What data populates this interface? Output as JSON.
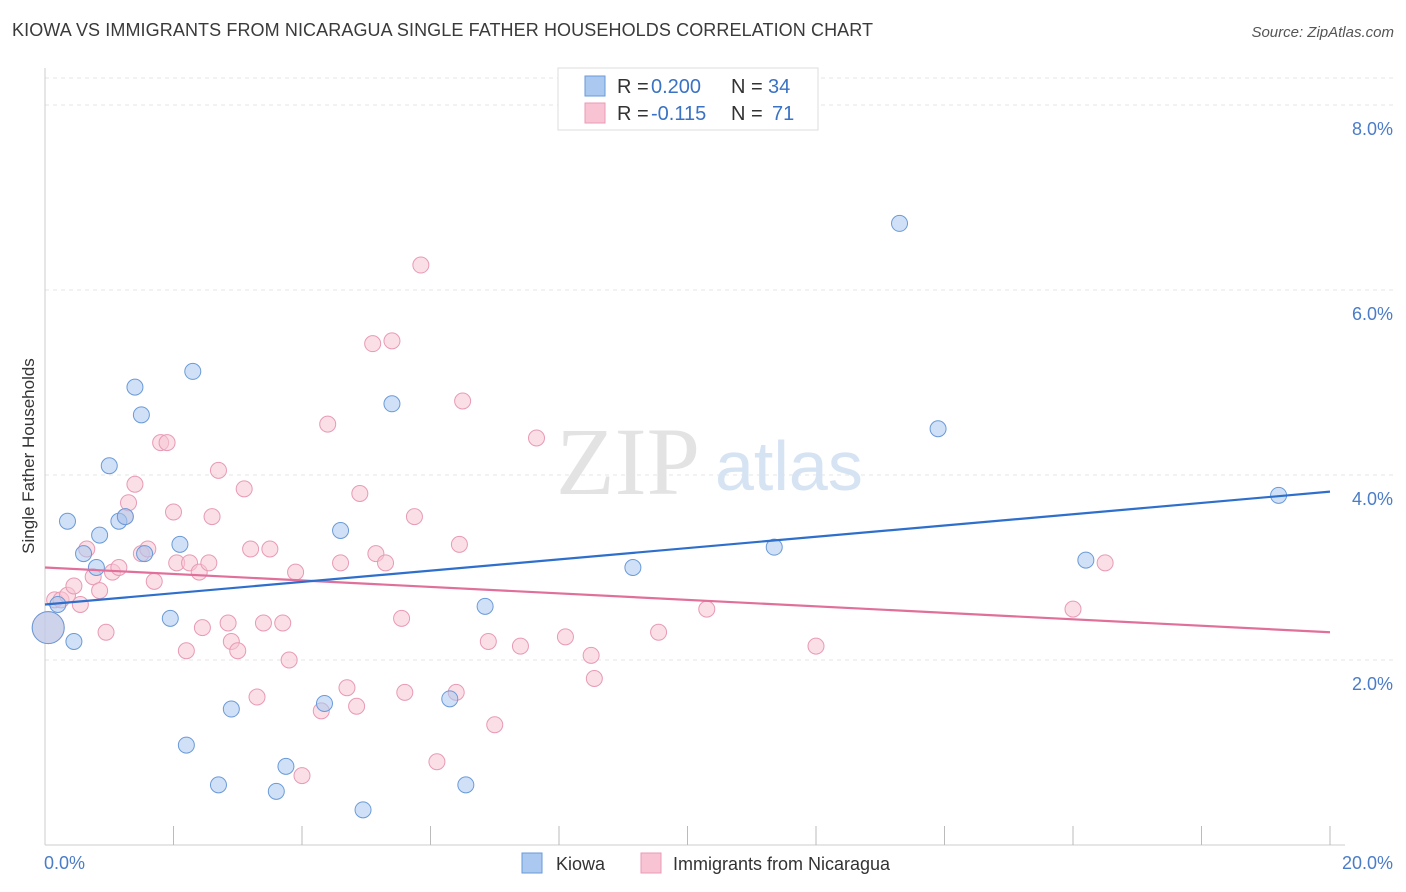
{
  "header": {
    "title": "KIOWA VS IMMIGRANTS FROM NICARAGUA SINGLE FATHER HOUSEHOLDS CORRELATION CHART",
    "source": "Source: ZipAtlas.com"
  },
  "watermark": {
    "zip": "ZIP",
    "atlas": "atlas"
  },
  "legend": {
    "series": [
      {
        "r_label": "R =",
        "r_value": "0.200",
        "n_label": "N =",
        "n_value": "34",
        "color": "#aac8f0",
        "stroke": "#6a9ad8"
      },
      {
        "r_label": "R =",
        "r_value": "-0.115",
        "n_label": "N =",
        "n_value": "71",
        "color": "#f8c4d4",
        "stroke": "#e89ab4"
      }
    ]
  },
  "chart_data": {
    "type": "scatter",
    "title": "KIOWA VS IMMIGRANTS FROM NICARAGUA SINGLE FATHER HOUSEHOLDS CORRELATION CHART",
    "xlabel": "",
    "ylabel": "Single Father Households",
    "xlim": [
      0,
      20
    ],
    "ylim": [
      0,
      8.4
    ],
    "x_tick_labels": [
      "0.0%",
      "20.0%"
    ],
    "y_ticks": [
      2,
      4,
      6,
      8
    ],
    "y_tick_labels": [
      "2.0%",
      "4.0%",
      "6.0%",
      "8.0%"
    ],
    "grid": true,
    "series": [
      {
        "name": "Kiowa",
        "color": "#aac8f0",
        "stroke": "#6a9ad8",
        "line_color": "#2f6fcc",
        "trend": [
          [
            0,
            2.6
          ],
          [
            20,
            3.82
          ]
        ],
        "points": [
          [
            0.05,
            2.35
          ],
          [
            0.2,
            2.6
          ],
          [
            0.35,
            3.5
          ],
          [
            0.45,
            2.2
          ],
          [
            0.6,
            3.15
          ],
          [
            0.8,
            3.0
          ],
          [
            0.85,
            3.35
          ],
          [
            1.0,
            4.1
          ],
          [
            1.15,
            3.5
          ],
          [
            1.25,
            3.55
          ],
          [
            1.4,
            4.95
          ],
          [
            1.5,
            4.65
          ],
          [
            1.55,
            3.15
          ],
          [
            1.95,
            2.45
          ],
          [
            2.1,
            3.25
          ],
          [
            2.2,
            1.08
          ],
          [
            2.3,
            5.12
          ],
          [
            2.7,
            0.65
          ],
          [
            2.9,
            1.47
          ],
          [
            3.6,
            0.58
          ],
          [
            3.75,
            0.85
          ],
          [
            4.35,
            1.53
          ],
          [
            4.6,
            3.4
          ],
          [
            4.95,
            0.38
          ],
          [
            5.4,
            4.77
          ],
          [
            6.3,
            1.58
          ],
          [
            6.55,
            0.65
          ],
          [
            6.85,
            2.58
          ],
          [
            9.15,
            3.0
          ],
          [
            11.35,
            3.22
          ],
          [
            13.3,
            6.72
          ],
          [
            13.9,
            4.5
          ],
          [
            16.2,
            3.08
          ],
          [
            19.2,
            3.78
          ]
        ]
      },
      {
        "name": "Immigrants from Nicaragua",
        "color": "#f8c4d4",
        "stroke": "#e89ab4",
        "line_color": "#e0709a",
        "trend": [
          [
            0,
            3.0
          ],
          [
            20,
            2.3
          ]
        ],
        "points": [
          [
            0.05,
            2.35
          ],
          [
            0.15,
            2.65
          ],
          [
            0.25,
            2.65
          ],
          [
            0.35,
            2.7
          ],
          [
            0.45,
            2.8
          ],
          [
            0.55,
            2.6
          ],
          [
            0.65,
            3.2
          ],
          [
            0.75,
            2.9
          ],
          [
            0.85,
            2.75
          ],
          [
            0.95,
            2.3
          ],
          [
            1.05,
            2.95
          ],
          [
            1.15,
            3.0
          ],
          [
            1.25,
            3.55
          ],
          [
            1.3,
            3.7
          ],
          [
            1.4,
            3.9
          ],
          [
            1.5,
            3.15
          ],
          [
            1.6,
            3.2
          ],
          [
            1.7,
            2.85
          ],
          [
            1.8,
            4.35
          ],
          [
            1.9,
            4.35
          ],
          [
            2.0,
            3.6
          ],
          [
            2.05,
            3.05
          ],
          [
            2.2,
            2.1
          ],
          [
            2.25,
            3.05
          ],
          [
            2.4,
            2.95
          ],
          [
            2.45,
            2.35
          ],
          [
            2.55,
            3.05
          ],
          [
            2.6,
            3.55
          ],
          [
            2.7,
            4.05
          ],
          [
            2.85,
            2.4
          ],
          [
            2.9,
            2.2
          ],
          [
            3.0,
            2.1
          ],
          [
            3.1,
            3.85
          ],
          [
            3.2,
            3.2
          ],
          [
            3.3,
            1.6
          ],
          [
            3.4,
            2.4
          ],
          [
            3.5,
            3.2
          ],
          [
            3.7,
            2.4
          ],
          [
            3.8,
            2.0
          ],
          [
            3.9,
            2.95
          ],
          [
            4.0,
            0.75
          ],
          [
            4.3,
            1.45
          ],
          [
            4.4,
            4.55
          ],
          [
            4.6,
            3.05
          ],
          [
            4.7,
            1.7
          ],
          [
            4.85,
            1.5
          ],
          [
            4.9,
            3.8
          ],
          [
            5.1,
            5.42
          ],
          [
            5.15,
            3.15
          ],
          [
            5.3,
            3.05
          ],
          [
            5.4,
            5.45
          ],
          [
            5.55,
            2.45
          ],
          [
            5.6,
            1.65
          ],
          [
            5.75,
            3.55
          ],
          [
            5.85,
            6.27
          ],
          [
            6.1,
            0.9
          ],
          [
            6.4,
            1.65
          ],
          [
            6.45,
            3.25
          ],
          [
            6.5,
            4.8
          ],
          [
            6.9,
            2.2
          ],
          [
            7.0,
            1.3
          ],
          [
            7.4,
            2.15
          ],
          [
            7.65,
            4.4
          ],
          [
            8.1,
            2.25
          ],
          [
            8.5,
            2.05
          ],
          [
            8.55,
            1.8
          ],
          [
            9.55,
            2.3
          ],
          [
            10.3,
            2.55
          ],
          [
            12.0,
            2.15
          ],
          [
            16.0,
            2.55
          ],
          [
            16.5,
            3.05
          ]
        ]
      }
    ]
  }
}
